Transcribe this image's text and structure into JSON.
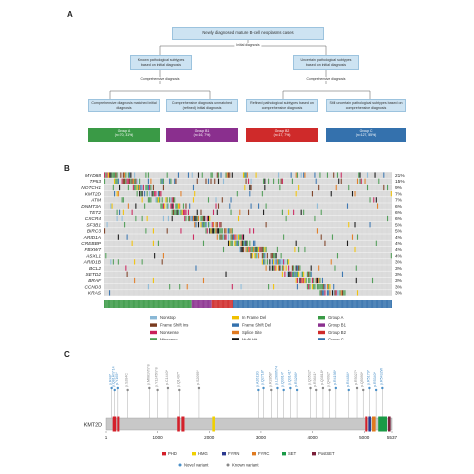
{
  "panelA": {
    "letter": "A",
    "top": "Newly diagnosed mature B-cell neoplasms cases",
    "initial": "Initial diagnosis",
    "known": "Known pathological subtypes based on initial diagnosis",
    "uncertain": "Uncertain pathological subtypes based on initial diagnosis",
    "comp_left": "Comprehensive diagnosis",
    "comp_right": "Comprehensive diagnosis",
    "boxes": [
      "Comprehensive diagnosis matched initial diagnosis",
      "Comprehensive diagnosis unmatched (refined) initial diagnosis",
      "Refined pathological subtypes based on comprehensive diagnosis",
      "Still uncertain pathological subtypes based on comprehensive diagnosis"
    ],
    "groups": [
      {
        "name": "Group A",
        "detail": "(n=70, 31%)",
        "color": "#3a9a46"
      },
      {
        "name": "Group B1",
        "detail": "(n=16, 7%)",
        "color": "#8a2f8e"
      },
      {
        "name": "Group B2",
        "detail": "(n=17, 7%)",
        "color": "#cf2a2a"
      },
      {
        "name": "Group C",
        "detail": "(n=127, 55%)",
        "color": "#3471ad"
      }
    ]
  },
  "panelB": {
    "letter": "B",
    "genes": [
      "MYD88",
      "TP53",
      "NOTCH1",
      "KMT2D",
      "ATM",
      "DNMT3A",
      "TET2",
      "CXCR4",
      "SF3B1",
      "BIRC3",
      "ARID1A",
      "CREBBP",
      "FBXW7",
      "ASXL1",
      "ARID1B",
      "BCL2",
      "SETD2",
      "BRAF",
      "CCND3",
      "KRAS"
    ],
    "percents": [
      "21%",
      "15%",
      "9%",
      "7%",
      "7%",
      "6%",
      "6%",
      "6%",
      "5%",
      "5%",
      "4%",
      "4%",
      "4%",
      "4%",
      "3%",
      "3%",
      "3%",
      "3%",
      "3%",
      "3%"
    ],
    "legend": [
      {
        "label": "Nonstop",
        "color": "#8ab8d6"
      },
      {
        "label": "In Frame Del",
        "color": "#f0c000"
      },
      {
        "label": "Group A",
        "color": "#3a9a46"
      },
      {
        "label": "Frame Shift Ins",
        "color": "#7a3b1f"
      },
      {
        "label": "Frame Shift Del",
        "color": "#3471ad"
      },
      {
        "label": "Group B1",
        "color": "#8a2f8e"
      },
      {
        "label": "Nonsense",
        "color": "#c9205a"
      },
      {
        "label": "Splice Site",
        "color": "#e07a20"
      },
      {
        "label": "Group B2",
        "color": "#cf2a2a"
      },
      {
        "label": "Missense",
        "color": "#4b9a52"
      },
      {
        "label": "Multi Hit",
        "color": "#111111"
      },
      {
        "label": "Group C",
        "color": "#3471ad"
      }
    ]
  },
  "panelC": {
    "letter": "C",
    "gene": "KMT2D",
    "ticks": [
      "1",
      "1000",
      "2000",
      "3000",
      "4000",
      "5000",
      "5537"
    ],
    "tick_values": [
      1,
      1000,
      2000,
      3000,
      4000,
      5000,
      5537
    ],
    "protein_length": 5537,
    "domains": [
      {
        "label": "PHD",
        "color": "#d4202a"
      },
      {
        "label": "HMG",
        "color": "#f0d000"
      },
      {
        "label": "FYRN",
        "color": "#2b3990"
      },
      {
        "label": "FYRC",
        "color": "#e07a20"
      },
      {
        "label": "SET",
        "color": "#1a9a46"
      },
      {
        "label": "PostSET",
        "color": "#7a1f3a"
      }
    ],
    "variant_legend": [
      {
        "label": "Novel variant",
        "color": "#4a90c8"
      },
      {
        "label": "Known variant",
        "color": "#888888"
      }
    ],
    "variants": [
      {
        "pos": 110,
        "label": "p.R48*",
        "novel": true
      },
      {
        "pos": 170,
        "label": "p.Q81Hfs*14",
        "novel": true
      },
      {
        "pos": 230,
        "label": "p.Y165*",
        "novel": true
      },
      {
        "pos": 420,
        "label": "p.S284C",
        "novel": false
      },
      {
        "pos": 840,
        "label": "p.M681Vfs*8",
        "novel": false
      },
      {
        "pos": 1000,
        "label": "p.Y1245fs*8",
        "novel": false
      },
      {
        "pos": 1200,
        "label": "p.C1440*",
        "novel": false
      },
      {
        "pos": 1420,
        "label": "p.Q1497*",
        "novel": false
      },
      {
        "pos": 1800,
        "label": "p.S2095*",
        "novel": false
      },
      {
        "pos": 2950,
        "label": "p.A2611G",
        "novel": true
      },
      {
        "pos": 3050,
        "label": "p.Q2718*",
        "novel": true
      },
      {
        "pos": 3200,
        "label": "p.R2858*",
        "novel": false
      },
      {
        "pos": 3320,
        "label": "p.L2906fs*4",
        "novel": true
      },
      {
        "pos": 3440,
        "label": "p.Q3014*",
        "novel": true
      },
      {
        "pos": 3570,
        "label": "p.Q3141*",
        "novel": true
      },
      {
        "pos": 3700,
        "label": "p.R3266*",
        "novel": true
      },
      {
        "pos": 3960,
        "label": "p.Q3532*",
        "novel": false
      },
      {
        "pos": 4070,
        "label": "p.R3641*",
        "novel": false
      },
      {
        "pos": 4200,
        "label": "p.Q3818*",
        "novel": false
      },
      {
        "pos": 4330,
        "label": "p.Q4092*",
        "novel": false
      },
      {
        "pos": 4450,
        "label": "p.R4198*",
        "novel": true
      },
      {
        "pos": 4700,
        "label": "p.R4484*",
        "novel": true
      },
      {
        "pos": 4860,
        "label": "p.R5027*",
        "novel": false
      },
      {
        "pos": 4980,
        "label": "p.Q5090*",
        "novel": false
      },
      {
        "pos": 5100,
        "label": "p.R5179*",
        "novel": true
      },
      {
        "pos": 5230,
        "label": "p.R5340*",
        "novel": true
      },
      {
        "pos": 5350,
        "label": "p.R5432W",
        "novel": true
      }
    ]
  }
}
